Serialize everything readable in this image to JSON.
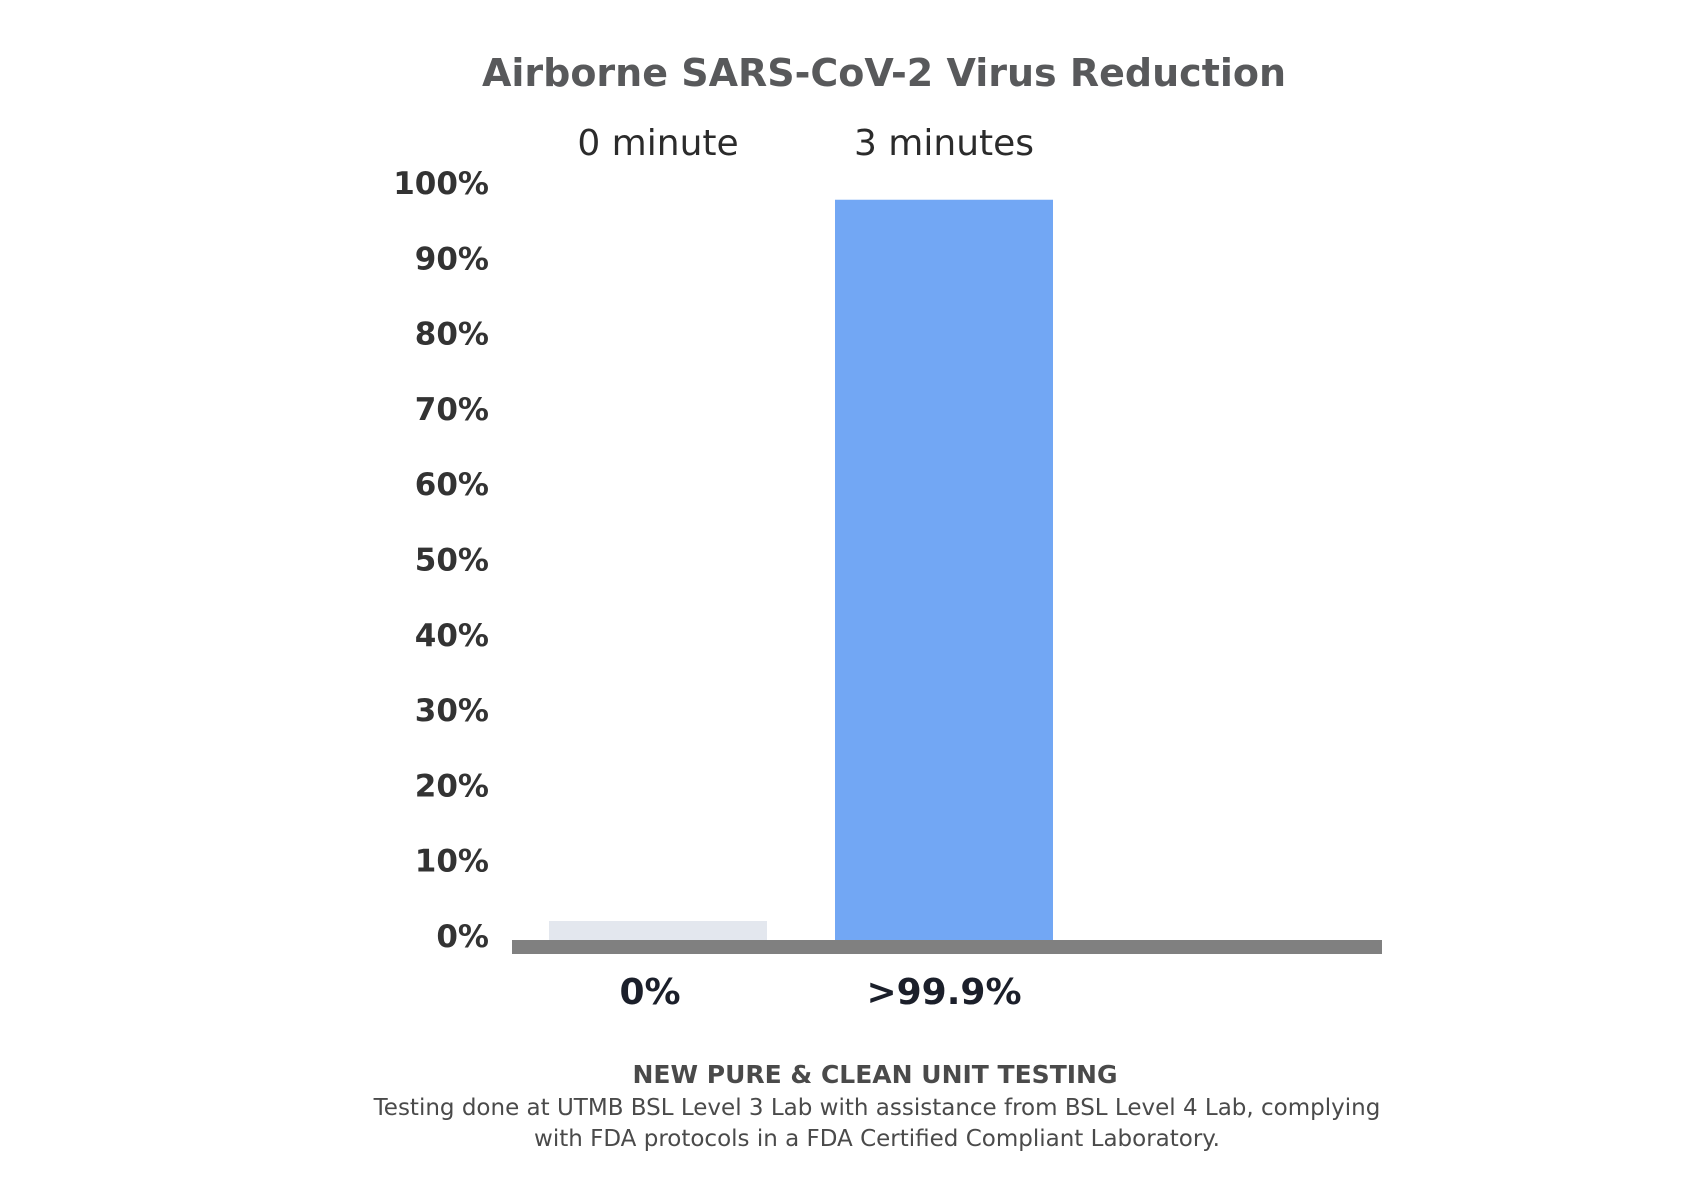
{
  "chart_data": {
    "type": "bar",
    "title": "Airborne SARS-CoV-2 Virus Reduction",
    "categories": [
      "0 minute",
      "3 minutes"
    ],
    "values": [
      0,
      99.9
    ],
    "value_labels": [
      "0%",
      ">99.9%"
    ],
    "yticks": [
      "100%",
      "90%",
      "80%",
      "70%",
      "60%",
      "50%",
      "40%",
      "30%",
      "20%",
      "10%",
      "0%"
    ],
    "ylim": [
      0,
      100
    ],
    "colors": [
      "#e3e7ee",
      "#72a7f4"
    ],
    "axis_color": "#808080",
    "grid": false
  },
  "footer": {
    "heading": "NEW PURE & CLEAN UNIT TESTING",
    "note_line1": "Testing done at UTMB BSL Level 3 Lab with assistance from BSL Level 4 Lab, complying",
    "note_line2": "with FDA protocols in a FDA Certified Compliant Laboratory."
  }
}
